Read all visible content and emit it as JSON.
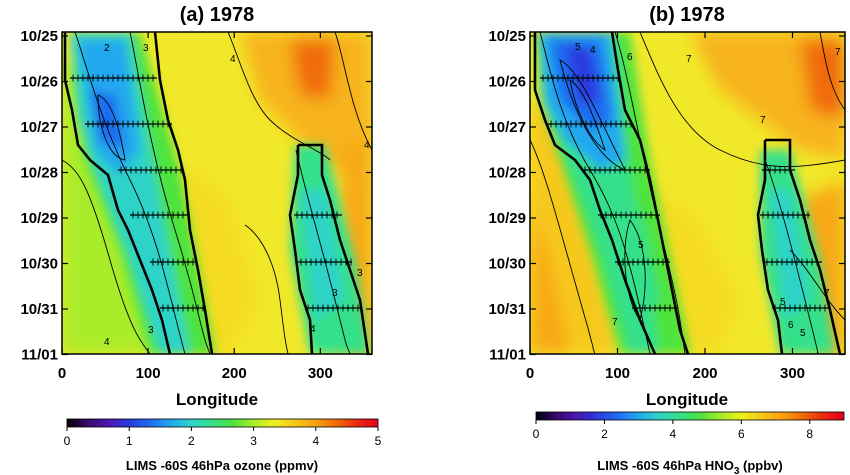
{
  "figure": {
    "panels": [
      {
        "title": "(a) 1978",
        "variable": "ozone",
        "colorbar": {
          "label": "LIMS -60S 46hPa ozone (ppmv)",
          "min": 0,
          "max": 5,
          "ticks": [
            "0",
            "1",
            "2",
            "3",
            "4",
            "5"
          ]
        },
        "contour_labels": [
          "2",
          "3",
          "3",
          "4",
          "4",
          "3",
          "4",
          "3",
          "4"
        ]
      },
      {
        "title": "(b) 1978",
        "variable": "HNO3",
        "colorbar": {
          "label_prefix": "LIMS -60S 46hPa HNO",
          "label_sub": "3",
          "label_suffix": " (ppbv)",
          "min": 0,
          "max": 9,
          "ticks": [
            "0",
            "2",
            "4",
            "6",
            "8"
          ]
        },
        "contour_labels": [
          "5",
          "4",
          "6",
          "7",
          "7",
          "5",
          "5",
          "7",
          "6",
          "5",
          "7",
          "7"
        ]
      }
    ],
    "colormap": [
      "#000000",
      "#3b0a6e",
      "#4c16b0",
      "#2a3be0",
      "#1f6cf0",
      "#22a8ee",
      "#2ed3c8",
      "#35e08a",
      "#4ee33c",
      "#a8ec2a",
      "#f0f01e",
      "#f7c81a",
      "#f7a010",
      "#f06a0a",
      "#ec2a10",
      "#e6001e"
    ]
  },
  "chart_data": [
    {
      "type": "heatmap",
      "title": "(a) 1978",
      "xlabel": "Longitude",
      "ylabel": "",
      "x_ticks": [
        "0",
        "100",
        "200",
        "300"
      ],
      "xlim": [
        0,
        360
      ],
      "y_ticks": [
        "10/25",
        "10/26",
        "10/27",
        "10/28",
        "10/29",
        "10/30",
        "10/31",
        "11/01"
      ],
      "quantity": "LIMS -60S 46hPa ozone (ppmv)",
      "value_range": [
        0,
        5
      ],
      "contour_levels": [
        2,
        3,
        4
      ],
      "features": [
        {
          "region": "lon 20-170 (drifting east with time)",
          "approx_value": 2.2
        },
        {
          "region": "lon 260-360, from 10/27.5",
          "approx_value": 2.8
        },
        {
          "region": "lon ~280, 10/25-10/26",
          "approx_value": 4.6
        }
      ]
    },
    {
      "type": "heatmap",
      "title": "(b) 1978",
      "xlabel": "Longitude",
      "ylabel": "",
      "x_ticks": [
        "0",
        "100",
        "200",
        "300"
      ],
      "xlim": [
        0,
        360
      ],
      "y_ticks": [
        "10/25",
        "10/26",
        "10/27",
        "10/28",
        "10/29",
        "10/30",
        "10/31",
        "11/01"
      ],
      "quantity": "LIMS -60S 46hPa HNO3 (ppbv)",
      "value_range": [
        0,
        9
      ],
      "contour_levels": [
        4,
        5,
        6,
        7
      ],
      "features": [
        {
          "region": "lon 20-160 (drifting east with time)",
          "approx_value": 3.0
        },
        {
          "region": "lon 260-350, from 10/27.5",
          "approx_value": 5.0
        },
        {
          "region": "lon ~330, 10/25-10/26",
          "approx_value": 8.0
        }
      ]
    }
  ]
}
